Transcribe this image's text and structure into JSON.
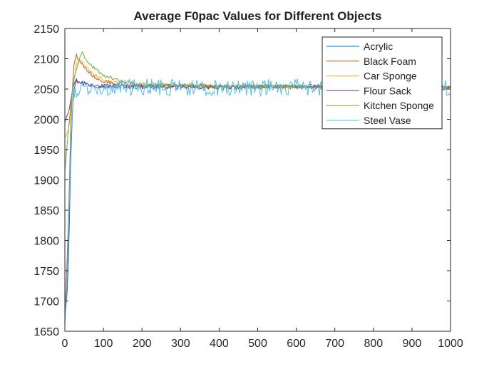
{
  "chart_data": {
    "type": "line",
    "title": "Average F0pac Values for Different Objects",
    "xlabel": "",
    "ylabel": "",
    "xlim": [
      0,
      1000
    ],
    "ylim": [
      1650,
      2150
    ],
    "xticks": [
      0,
      100,
      200,
      300,
      400,
      500,
      600,
      700,
      800,
      900,
      1000
    ],
    "yticks": [
      1650,
      1700,
      1750,
      1800,
      1850,
      1900,
      1950,
      2000,
      2050,
      2100,
      2150
    ],
    "grid": false,
    "legend_position": "top-right",
    "series": [
      {
        "name": "Acrylic",
        "color": "#0072BD",
        "noise": 4,
        "x": [
          0,
          5,
          10,
          15,
          20,
          25,
          30,
          40,
          60,
          100,
          200,
          400,
          600,
          800,
          1000
        ],
        "y": [
          1680,
          1700,
          1780,
          1930,
          2020,
          2055,
          2065,
          2062,
          2058,
          2055,
          2054,
          2053,
          2054,
          2053,
          2052
        ]
      },
      {
        "name": "Black Foam",
        "color": "#D95319",
        "noise": 3,
        "x": [
          0,
          5,
          10,
          15,
          20,
          25,
          30,
          40,
          60,
          80,
          100,
          150,
          200,
          400,
          600,
          800,
          1000
        ],
        "y": [
          1680,
          1750,
          1850,
          1980,
          2060,
          2100,
          2105,
          2095,
          2080,
          2068,
          2062,
          2058,
          2056,
          2054,
          2054,
          2053,
          2052
        ]
      },
      {
        "name": "Car Sponge",
        "color": "#EDB120",
        "noise": 3,
        "x": [
          0,
          5,
          10,
          15,
          20,
          30,
          40,
          50,
          70,
          100,
          150,
          200,
          400,
          600,
          800,
          1000
        ],
        "y": [
          1970,
          1975,
          1985,
          2010,
          2050,
          2090,
          2098,
          2090,
          2075,
          2065,
          2058,
          2056,
          2054,
          2054,
          2053,
          2052
        ]
      },
      {
        "name": "Flour Sack",
        "color": "#7E2F8E",
        "noise": 3,
        "x": [
          0,
          5,
          10,
          15,
          20,
          25,
          30,
          40,
          60,
          100,
          200,
          400,
          600,
          800,
          1000
        ],
        "y": [
          1995,
          2005,
          2012,
          2030,
          2050,
          2060,
          2062,
          2060,
          2057,
          2055,
          2054,
          2053,
          2054,
          2053,
          2052
        ]
      },
      {
        "name": "Kitchen Sponge",
        "color": "#77AC30",
        "noise": 3,
        "x": [
          0,
          5,
          10,
          15,
          20,
          30,
          40,
          45,
          50,
          60,
          80,
          100,
          150,
          200,
          400,
          600,
          800,
          1000
        ],
        "y": [
          1915,
          1950,
          1990,
          2020,
          2050,
          2085,
          2102,
          2110,
          2104,
          2094,
          2082,
          2072,
          2062,
          2058,
          2055,
          2054,
          2053,
          2052
        ]
      },
      {
        "name": "Steel Vase",
        "color": "#4DBEEE",
        "noise": 14,
        "x": [
          0,
          5,
          10,
          15,
          20,
          30,
          50,
          100,
          200,
          300,
          400,
          500,
          600,
          700,
          800,
          900,
          1000
        ],
        "y": [
          1660,
          1720,
          1820,
          1950,
          2030,
          2048,
          2050,
          2052,
          2053,
          2052,
          2053,
          2052,
          2053,
          2052,
          2053,
          2052,
          2052
        ]
      }
    ]
  }
}
